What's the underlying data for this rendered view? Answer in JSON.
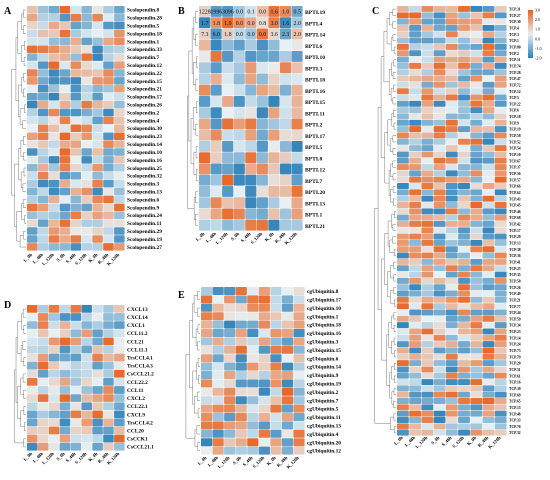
{
  "figure": {
    "colors": {
      "low": "#2c7fb8",
      "mid": "#e8f1f4",
      "high": "#e8601c"
    },
    "panels": [
      {
        "label": "A",
        "rows": [
          "Scolopendin.8",
          "Scolopendin.28",
          "Scolopendin.5",
          "Scolopendin.18",
          "Scolopendin.1",
          "Scolopendin.33",
          "Scolopendin.7",
          "Scolopendin.12",
          "Scolopendin.22",
          "Scolopendin.15",
          "Scolopendin.21",
          "Scolopendin.17",
          "Scolopendin.26",
          "Scolopendin.2",
          "Scolopendin.4",
          "Scolopendin.30",
          "Scolopendin.23",
          "Scolopendin.14",
          "Scolopendin.10",
          "Scolopendin.16",
          "Scolopendin.25",
          "Scolopendin.32",
          "Scolopendin.3",
          "Scolopendin.13",
          "Scolopendin.6",
          "Scolopendin.9",
          "Scolopendin.24",
          "Scolopendin.11",
          "Scolopendin.29",
          "Scolopendin.19",
          "Scolopendin.27"
        ],
        "cols": [
          "L_0h",
          "L_48h",
          "L_120h",
          "S_0h",
          "S_48h",
          "S_120h",
          "K_0h",
          "K_48h",
          "K_120h"
        ]
      },
      {
        "label": "B",
        "rows": [
          "BPTI.19",
          "BPTI.4",
          "BPTI.14",
          "BPTI.6",
          "BPTI.10",
          "BPTI.3",
          "BPTI.18",
          "BPTI.16",
          "BPTI.15",
          "BPTI.11",
          "BPTI.2",
          "BPTI.17",
          "BPTI.5",
          "BPTI.8",
          "BPTI.12",
          "BPTI.7",
          "BPTI.20",
          "BPTI.13",
          "BPTI.1",
          "BPTI.21"
        ],
        "cols": [
          "L_0h",
          "L_48h",
          "L_120h",
          "S_0h",
          "S_48h",
          "S_120h",
          "K_0h",
          "K_48h",
          "K_120h"
        ],
        "visible_values": [
          [
            "1228",
            "1996",
            "3096",
            "0.0",
            "0.1",
            "0.0",
            "1.6",
            "1.0",
            "0.5"
          ],
          [
            "1.7",
            "1.8",
            "1.9",
            "0.0",
            "0.0",
            "0.8",
            "3.0",
            "1.6",
            "2.0"
          ],
          [
            "7.3",
            "6.0",
            "1.8",
            "0.0",
            "0.0",
            "0.0",
            "3.6",
            "2.3",
            "2.0"
          ]
        ]
      },
      {
        "label": "C",
        "rows": [
          "TCP.31",
          "TCP.27",
          "TCP.30",
          "TCP.4",
          "TCP.3",
          "TCP.1",
          "TCP.80",
          "TCP.2",
          "TCP.11",
          "TCP.74",
          "TCP.28",
          "TCP.47",
          "TCP.72",
          "TCP.12",
          "TCP.5",
          "TCP.22",
          "TCP.6",
          "TCP.18",
          "TCP.9",
          "TCP.19",
          "TCP.58",
          "TCP.52",
          "TCP.54",
          "TCP.10",
          "TCP.67",
          "TCP.37",
          "TCP.56",
          "TCP.57",
          "TCP.66",
          "TCP.62",
          "TCP.43",
          "TCP.45",
          "TCP.46",
          "TCP.68",
          "TCP.42",
          "TCP.17",
          "TCP.29",
          "TCP.13",
          "TCP.38",
          "TCP.36",
          "TCP.41",
          "TCP.25",
          "TCP.35",
          "TCP.50",
          "TCP.26",
          "TCP.49",
          "TCP.21",
          "TCP.77",
          "TCP.44",
          "TCP.59",
          "TCP.34",
          "TCP.23",
          "TCP.14",
          "TCP.24",
          "TCP.73",
          "TCP.79",
          "TCP.20",
          "TCP.51",
          "TCP.61",
          "TCP.16",
          "TCP.39",
          "TCP.69",
          "TCP.65",
          "TCP.15",
          "TCP.48",
          "TCP.33",
          "TCP.76",
          "TCP.32"
        ],
        "cols": [
          "L_0h",
          "L_48h",
          "L_120h",
          "S_0h",
          "S_48h",
          "S_120h",
          "K_0h",
          "K_48h",
          "K_120h"
        ],
        "legend_ticks": [
          "3.0",
          "2.0",
          "1.0",
          "0.0",
          "-1.0",
          "-2.0"
        ]
      },
      {
        "label": "D",
        "rows": [
          "CXCL13",
          "CXCL14",
          "CXCL1",
          "CCL11.2",
          "CCL21",
          "CCL11.1",
          "TrsCCL4.1",
          "TrsCCL4.3",
          "CsCCL21.2",
          "CCL22.2",
          "CCL11",
          "CXCL2",
          "CCL22.1",
          "CXCL9",
          "TrsCCL4.2",
          "CCL20",
          "CsCCK1",
          "CsCCL21.1"
        ],
        "cols": [
          "L_0h",
          "L_48h",
          "L_120h",
          "S_0h",
          "S_48h",
          "S_120h",
          "K_0h",
          "K_48h",
          "K_120h"
        ]
      },
      {
        "label": "E",
        "rows": [
          "cgUbiquitin.8",
          "cgUbiquitin.17",
          "cgUbiquitin.10",
          "cgUbiquitin.1",
          "cgUbiquitin.18",
          "cgUbiquitin.16",
          "cgUbiquitin.3",
          "cgUbiquitin.15",
          "cgUbiquitin.6",
          "cgUbiquitin.14",
          "cgUbiquitin.9",
          "cgUbiquitin.19",
          "cgUbiquitin.2",
          "cgUbiquitin.7",
          "cgUbiquitin.5",
          "cgUbiquitin.11",
          "cgUbiquitin.13",
          "cgUbiquitin.4",
          "cgUbiquitin.20",
          "cgUbiquitin.12"
        ],
        "cols": [
          "L_0h",
          "L_48h",
          "L_120h",
          "S_0h",
          "S_48h",
          "S_120h",
          "K_0h",
          "K_48h",
          "K_120h"
        ]
      }
    ]
  }
}
